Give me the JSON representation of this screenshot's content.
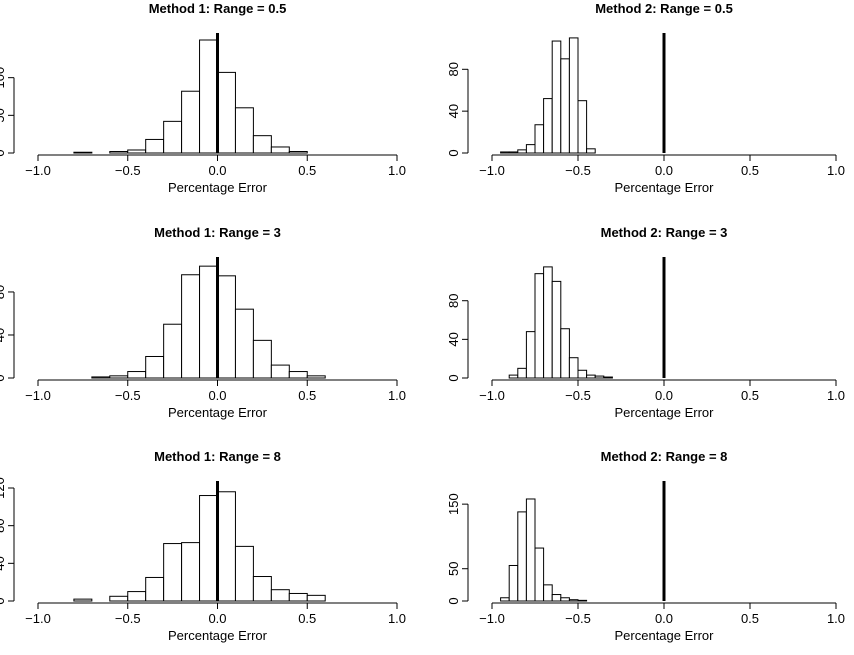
{
  "chart_data": [
    {
      "type": "bar",
      "title": "Method 1: Range = 0.5",
      "xlabel": "Percentage Error",
      "ylabel": "",
      "xlim": [
        -1.0,
        1.0
      ],
      "xticks": [
        -1.0,
        -0.5,
        0.0,
        0.5,
        1.0
      ],
      "xtick_labels": [
        "−1.0",
        "−0.5",
        "0.0",
        "0.5",
        "1.0"
      ],
      "yticks": [
        0,
        50,
        100
      ],
      "ylim": [
        0,
        150
      ],
      "bin_width": 0.1,
      "bin_starts": [
        -0.8,
        -0.7,
        -0.6,
        -0.5,
        -0.4,
        -0.3,
        -0.2,
        -0.1,
        0.0,
        0.1,
        0.2,
        0.3,
        0.4
      ],
      "values": [
        1,
        0,
        2,
        4,
        18,
        42,
        82,
        150,
        107,
        60,
        23,
        8,
        2
      ],
      "reference_line_x": 0.0
    },
    {
      "type": "bar",
      "title": "Method 2: Range = 0.5",
      "xlabel": "Percentage Error",
      "ylabel": "",
      "xlim": [
        -1.0,
        1.0
      ],
      "xticks": [
        -1.0,
        -0.5,
        0.0,
        0.5,
        1.0
      ],
      "xtick_labels": [
        "−1.0",
        "−0.5",
        "0.0",
        "0.5",
        "1.0"
      ],
      "yticks": [
        0,
        40,
        80
      ],
      "ylim": [
        0,
        108
      ],
      "bin_width": 0.05,
      "bin_starts": [
        -0.95,
        -0.9,
        -0.85,
        -0.8,
        -0.75,
        -0.7,
        -0.65,
        -0.6,
        -0.55,
        -0.5,
        -0.45
      ],
      "values": [
        1,
        1,
        3,
        8,
        27,
        52,
        107,
        90,
        110,
        50,
        4
      ],
      "reference_line_x": 0.0
    },
    {
      "type": "bar",
      "title": "Method 1: Range = 3",
      "xlabel": "Percentage Error",
      "ylabel": "",
      "xlim": [
        -1.0,
        1.0
      ],
      "xticks": [
        -1.0,
        -0.5,
        0.0,
        0.5,
        1.0
      ],
      "xtick_labels": [
        "−1.0",
        "−0.5",
        "0.0",
        "0.5",
        "1.0"
      ],
      "yticks": [
        0,
        40,
        80
      ],
      "ylim": [
        0,
        106
      ],
      "bin_width": 0.1,
      "bin_starts": [
        -0.7,
        -0.6,
        -0.5,
        -0.4,
        -0.3,
        -0.2,
        -0.1,
        0.0,
        0.1,
        0.2,
        0.3,
        0.4,
        0.5
      ],
      "values": [
        1,
        2,
        6,
        20,
        50,
        96,
        104,
        95,
        64,
        35,
        12,
        6,
        2
      ],
      "reference_line_x": 0.0
    },
    {
      "type": "bar",
      "title": "Method 2: Range = 3",
      "xlabel": "Percentage Error",
      "ylabel": "",
      "xlim": [
        -1.0,
        1.0
      ],
      "xticks": [
        -1.0,
        -0.5,
        0.0,
        0.5,
        1.0
      ],
      "xtick_labels": [
        "−1.0",
        "−0.5",
        "0.0",
        "0.5",
        "1.0"
      ],
      "yticks": [
        0,
        40,
        80
      ],
      "ylim": [
        0,
        118
      ],
      "bin_width": 0.05,
      "bin_starts": [
        -0.95,
        -0.9,
        -0.85,
        -0.8,
        -0.75,
        -0.7,
        -0.65,
        -0.6,
        -0.55,
        -0.5,
        -0.45,
        -0.4,
        -0.35
      ],
      "values": [
        0,
        3,
        10,
        48,
        108,
        115,
        100,
        51,
        21,
        8,
        3,
        2,
        1
      ],
      "reference_line_x": 0.0
    },
    {
      "type": "bar",
      "title": "Method 1: Range = 8",
      "xlabel": "Percentage Error",
      "ylabel": "",
      "xlim": [
        -1.0,
        1.0
      ],
      "xticks": [
        -1.0,
        -0.5,
        0.0,
        0.5,
        1.0
      ],
      "xtick_labels": [
        "−1.0",
        "−0.5",
        "0.0",
        "0.5",
        "1.0"
      ],
      "yticks": [
        0,
        40,
        80,
        120
      ],
      "ylim": [
        0,
        120
      ],
      "bin_width": 0.1,
      "bin_starts": [
        -0.8,
        -0.7,
        -0.6,
        -0.5,
        -0.4,
        -0.3,
        -0.2,
        -0.1,
        0.0,
        0.1,
        0.2,
        0.3,
        0.4,
        0.5
      ],
      "values": [
        2,
        0,
        5,
        10,
        25,
        61,
        62,
        112,
        116,
        58,
        26,
        12,
        8,
        6
      ],
      "reference_line_x": 0.0
    },
    {
      "type": "bar",
      "title": "Method 2: Range = 8",
      "xlabel": "Percentage Error",
      "ylabel": "",
      "xlim": [
        -1.0,
        1.0
      ],
      "xticks": [
        -1.0,
        -0.5,
        0.0,
        0.5,
        1.0
      ],
      "xtick_labels": [
        "−1.0",
        "−0.5",
        "0.0",
        "0.5",
        "1.0"
      ],
      "yticks": [
        0,
        50,
        150
      ],
      "ylim": [
        0,
        175
      ],
      "bin_width": 0.05,
      "bin_starts": [
        -0.95,
        -0.9,
        -0.85,
        -0.8,
        -0.75,
        -0.7,
        -0.65,
        -0.6,
        -0.55,
        -0.5
      ],
      "values": [
        5,
        55,
        138,
        158,
        82,
        25,
        10,
        5,
        2,
        1
      ],
      "reference_line_x": 0.0
    }
  ]
}
